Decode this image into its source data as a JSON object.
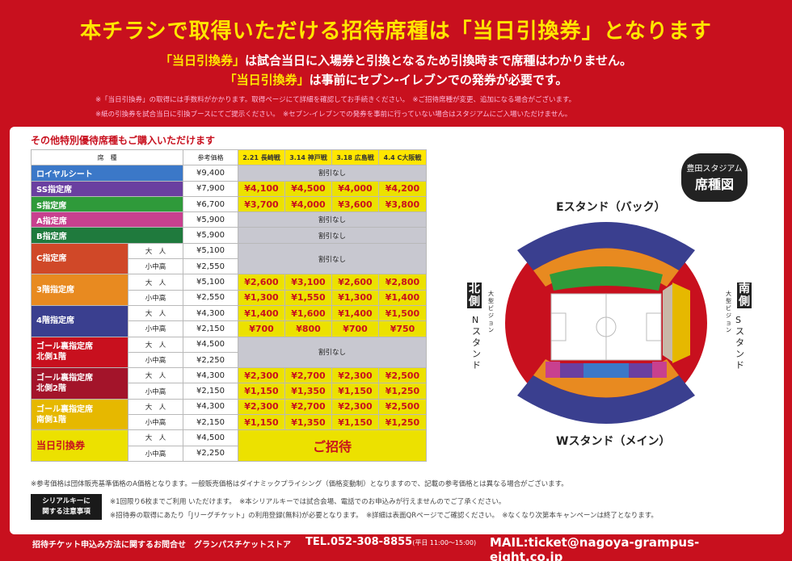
{
  "header": {
    "title": "本チラシで取得いただける招待席種は「当日引換券」となります",
    "line1_hl": "「当日引換券」",
    "line1_rest": "は試合当日に入場券と引換となるため引換時まで席種はわかりません。",
    "line2_hl": "「当日引換券」",
    "line2_rest": "は事前にセブン-イレブンでの発券が必要です。",
    "note1a": "※「当日引換券」の取得には手数料がかかります。取得ページにて詳細を確認してお手続きください。",
    "note1b": "※ご招待席種が変更、追加になる場合がございます。",
    "note2a": "※紙の引換券を試合当日に引換ブースにてご提示ください。",
    "note2b": "※セブン-イレブンでの発券を事前に行っていない場合はスタジアムにご入場いただけません。"
  },
  "table": {
    "subtitle": "その他特別優待席種もご購入いただけます",
    "h_seat": "席　種",
    "h_ref": "参考価格",
    "events": [
      "2.21 長崎戦",
      "3.14 神戸戦",
      "3.18 広島戦",
      "4.4 C大阪戦"
    ],
    "no_discount": "割引なし",
    "invite": "ご招待",
    "adult": "大　人",
    "child": "小中高",
    "rows": [
      {
        "name": "ロイヤルシート",
        "color": "#3b78c8",
        "ref": "¥9,400",
        "prices": null
      },
      {
        "name": "SS指定席",
        "color": "#6a3fa0",
        "ref": "¥7,900",
        "prices": [
          "¥4,100",
          "¥4,500",
          "¥4,000",
          "¥4,200"
        ]
      },
      {
        "name": "S指定席",
        "color": "#2f9a3a",
        "ref": "¥6,700",
        "prices": [
          "¥3,700",
          "¥4,000",
          "¥3,600",
          "¥3,800"
        ]
      },
      {
        "name": "A指定席",
        "color": "#c8408f",
        "ref": "¥5,900",
        "prices": null
      },
      {
        "name": "B指定席",
        "color": "#1f7a3d",
        "ref": "¥5,900",
        "prices": null
      }
    ],
    "group_rows": [
      {
        "name": "C指定席",
        "color": "#d04828",
        "adult_ref": "¥5,100",
        "child_ref": "¥2,550",
        "adult": null,
        "child": null
      },
      {
        "name": "3階指定席",
        "color": "#e88a20",
        "adult_ref": "¥5,100",
        "child_ref": "¥2,550",
        "adult": [
          "¥2,600",
          "¥3,100",
          "¥2,600",
          "¥2,800"
        ],
        "child": [
          "¥1,300",
          "¥1,550",
          "¥1,300",
          "¥1,400"
        ]
      },
      {
        "name": "4階指定席",
        "color": "#3a3f8f",
        "adult_ref": "¥4,300",
        "child_ref": "¥2,150",
        "adult": [
          "¥1,400",
          "¥1,600",
          "¥1,400",
          "¥1,500"
        ],
        "child": [
          "¥700",
          "¥800",
          "¥700",
          "¥750"
        ]
      },
      {
        "name": "ゴール裏指定席\n北側1階",
        "color": "#c8101e",
        "adult_ref": "¥4,500",
        "child_ref": "¥2,250",
        "adult": null,
        "child": null
      },
      {
        "name": "ゴール裏指定席\n北側2階",
        "color": "#a3142a",
        "adult_ref": "¥4,300",
        "child_ref": "¥2,150",
        "adult": [
          "¥2,300",
          "¥2,700",
          "¥2,300",
          "¥2,500"
        ],
        "child": [
          "¥1,150",
          "¥1,350",
          "¥1,150",
          "¥1,250"
        ]
      },
      {
        "name": "ゴール裏指定席\n南側1階",
        "color": "#e6b800",
        "adult_ref": "¥4,300",
        "child_ref": "¥2,150",
        "adult": [
          "¥2,300",
          "¥2,700",
          "¥2,300",
          "¥2,500"
        ],
        "child": [
          "¥1,150",
          "¥1,350",
          "¥1,150",
          "¥1,250"
        ]
      },
      {
        "name": "当日引換券",
        "color": "#ece100",
        "adult_ref": "¥4,500",
        "child_ref": "¥2,250",
        "invite": true
      }
    ]
  },
  "notes": {
    "price_note": "※参考価格は団体販売基準価格のA価格となります。一般販売価格はダイナミックプライシング（価格変動制）となりますので、記載の参考価格とは異なる場合がございます。",
    "serial_label": "シリアルキーに\n関する注意事項",
    "serial1a": "※1回限り6枚までご利用 いただけます。",
    "serial1b": "※本シリアルキーでは試合会場、電話でのお申込みが行えませんのでご了承ください。",
    "serial2a": "※招待券の取得にあたり「Jリーグチケット」の利用登録(無料)が必要となります。",
    "serial2b": "※詳細は表面QRページでご確認ください。",
    "serial2c": "※なくなり次第本キャンペーンは終了となります。"
  },
  "stadium": {
    "badge1": "豊田スタジアム",
    "badge2": "席種図",
    "e_stand": "Eスタンド（バック）",
    "w_stand": "Wスタンド（メイン）",
    "north": "北側",
    "south": "南側",
    "n_stand": "Nスタンド",
    "s_stand": "Sスタンド",
    "vision": "大型ビジョン"
  },
  "footer": {
    "contact": "招待チケット申込み方法に関するお問合せ　グランパスチケットストア",
    "tel": "TEL.052-308-8855",
    "hours": "(平日 11:00〜15:00)",
    "mail": "MAIL:ticket@nagoya-grampus-eight.co.jp"
  }
}
